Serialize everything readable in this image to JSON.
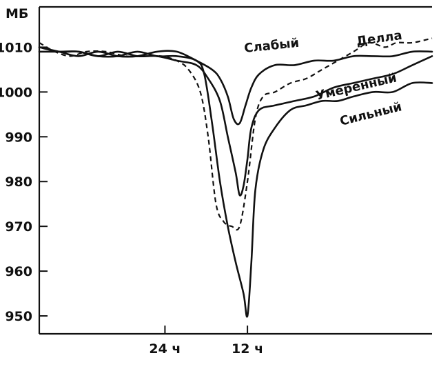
{
  "chart_data": {
    "type": "line",
    "title": "",
    "xlabel": "",
    "ylabel": "МБ",
    "ylim": [
      946,
      1019
    ],
    "xlim": [
      0,
      100
    ],
    "y_ticks": [
      1010,
      1000,
      990,
      980,
      970,
      960,
      950
    ],
    "x_ticks": [
      {
        "x": 32,
        "label": "24 ч"
      },
      {
        "x": 53,
        "label": "12 ч"
      }
    ],
    "grid": false,
    "legend": "inline",
    "series": [
      {
        "name": "Слабый",
        "style": "solid",
        "x": [
          0,
          5,
          10,
          15,
          20,
          25,
          30,
          35,
          40,
          44,
          46,
          48,
          49.5,
          51,
          52.5,
          54,
          56,
          60,
          65,
          70,
          75,
          80,
          85,
          90,
          95,
          100
        ],
        "y": [
          1010,
          1009,
          1008,
          1009,
          1008,
          1008,
          1009,
          1009,
          1007,
          1005,
          1003,
          999,
          994,
          993,
          997,
          1001,
          1004,
          1006,
          1006,
          1007,
          1007,
          1008,
          1008,
          1008,
          1009,
          1009
        ]
      },
      {
        "name": "Делла",
        "style": "dashed",
        "x": [
          0,
          4,
          8,
          12,
          17,
          22,
          27,
          31,
          35,
          38,
          41,
          43,
          45,
          47,
          49,
          51,
          53,
          55,
          57,
          60,
          64,
          68,
          72,
          76,
          80,
          84,
          88,
          91,
          95,
          100
        ],
        "y": [
          1011,
          1009,
          1008,
          1009,
          1009,
          1008,
          1008,
          1008,
          1007,
          1005,
          1000,
          990,
          975,
          971,
          970,
          970,
          980,
          994,
          999,
          1000,
          1002,
          1003,
          1005,
          1007,
          1009,
          1011,
          1010,
          1011,
          1011,
          1012
        ]
      },
      {
        "name": "Умеренный",
        "style": "solid",
        "x": [
          0,
          5,
          10,
          15,
          20,
          25,
          30,
          35,
          40,
          43,
          46,
          48,
          50,
          51,
          52,
          53,
          54,
          56,
          60,
          65,
          70,
          75,
          80,
          85,
          90,
          95,
          100
        ],
        "y": [
          1009,
          1009,
          1009,
          1008,
          1009,
          1008,
          1008,
          1007,
          1006,
          1003,
          998,
          990,
          982,
          977,
          979,
          985,
          992,
          996,
          997,
          998,
          999,
          1001,
          1002,
          1003,
          1004,
          1006,
          1008
        ]
      },
      {
        "name": "Сильный",
        "style": "solid",
        "x": [
          0,
          5,
          10,
          15,
          20,
          25,
          30,
          35,
          40,
          42,
          44,
          46,
          48,
          50,
          52,
          53,
          54,
          55,
          57,
          60,
          64,
          68,
          72,
          76,
          80,
          85,
          90,
          95,
          100
        ],
        "y": [
          1010,
          1009,
          1009,
          1008,
          1008,
          1009,
          1008,
          1008,
          1007,
          1004,
          993,
          980,
          970,
          962,
          955,
          950,
          962,
          978,
          987,
          992,
          996,
          997,
          998,
          998,
          999,
          1000,
          1000,
          1002,
          1002
        ]
      }
    ]
  }
}
